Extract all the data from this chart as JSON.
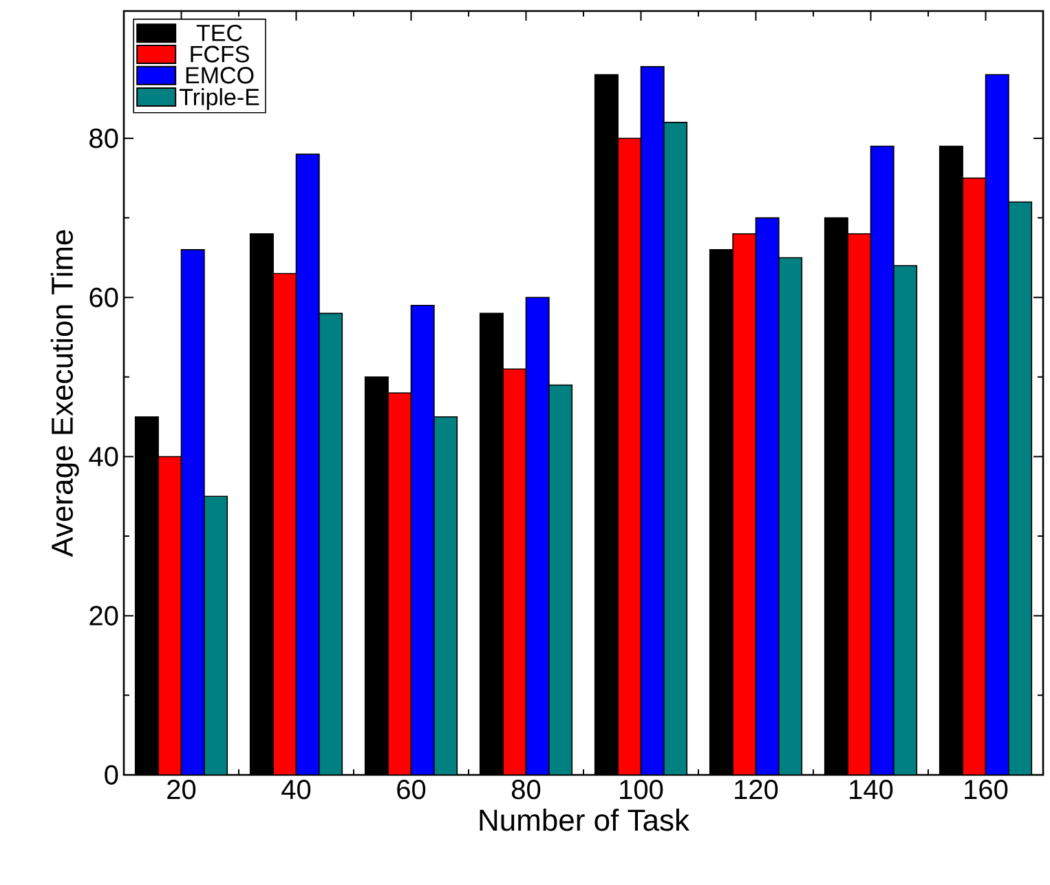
{
  "chart_data": {
    "type": "bar",
    "xlabel": "Number of Task",
    "ylabel": "Average Execution Time",
    "categories": [
      "20",
      "40",
      "60",
      "80",
      "100",
      "120",
      "140",
      "160"
    ],
    "series": [
      {
        "name": "TEC",
        "color": "#000000",
        "values": [
          45,
          68,
          50,
          58,
          88,
          66,
          70,
          79
        ]
      },
      {
        "name": "FCFS",
        "color": "#ff0000",
        "values": [
          40,
          63,
          48,
          51,
          80,
          68,
          68,
          75
        ]
      },
      {
        "name": "EMCO",
        "color": "#0000ff",
        "values": [
          66,
          78,
          59,
          60,
          89,
          70,
          79,
          88
        ]
      },
      {
        "name": "Triple-E",
        "color": "#008080",
        "values": [
          35,
          58,
          45,
          49,
          82,
          65,
          64,
          72
        ]
      }
    ],
    "ylim": [
      0,
      96
    ],
    "yticks": [
      0,
      20,
      40,
      60,
      80
    ],
    "grid": false,
    "legend": "top left"
  }
}
